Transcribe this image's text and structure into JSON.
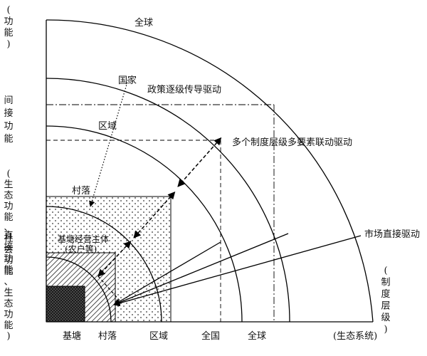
{
  "axis_left": {
    "top_paren": [
      "(",
      "功",
      "能",
      ")"
    ],
    "indirect": [
      "间",
      "接",
      "功",
      "能"
    ],
    "eco_social": [
      "(",
      "生",
      "态",
      "功",
      "能",
      "、",
      "社",
      "会",
      "功",
      "能",
      "、",
      "生",
      "态",
      "功",
      "能",
      ")"
    ],
    "direct": [
      "直",
      "接",
      "功",
      "能"
    ]
  },
  "axis_right": [
    "(",
    "制",
    "度",
    "层",
    "级",
    ")"
  ],
  "bottom_labels": [
    "基塘",
    "村落",
    "区域",
    "全国",
    "全球",
    "(生态系统)"
  ],
  "arc_labels": {
    "global": "全球",
    "nation": "国家",
    "region": "区域",
    "village": "村落"
  },
  "annotations": {
    "policy": "政策逐级传导驱动",
    "multi": "多个制度层级多要素联动驱动",
    "market": "市场直接驱动",
    "entity_line1": "基塘经营主体",
    "entity_line2": "(农户等)"
  }
}
